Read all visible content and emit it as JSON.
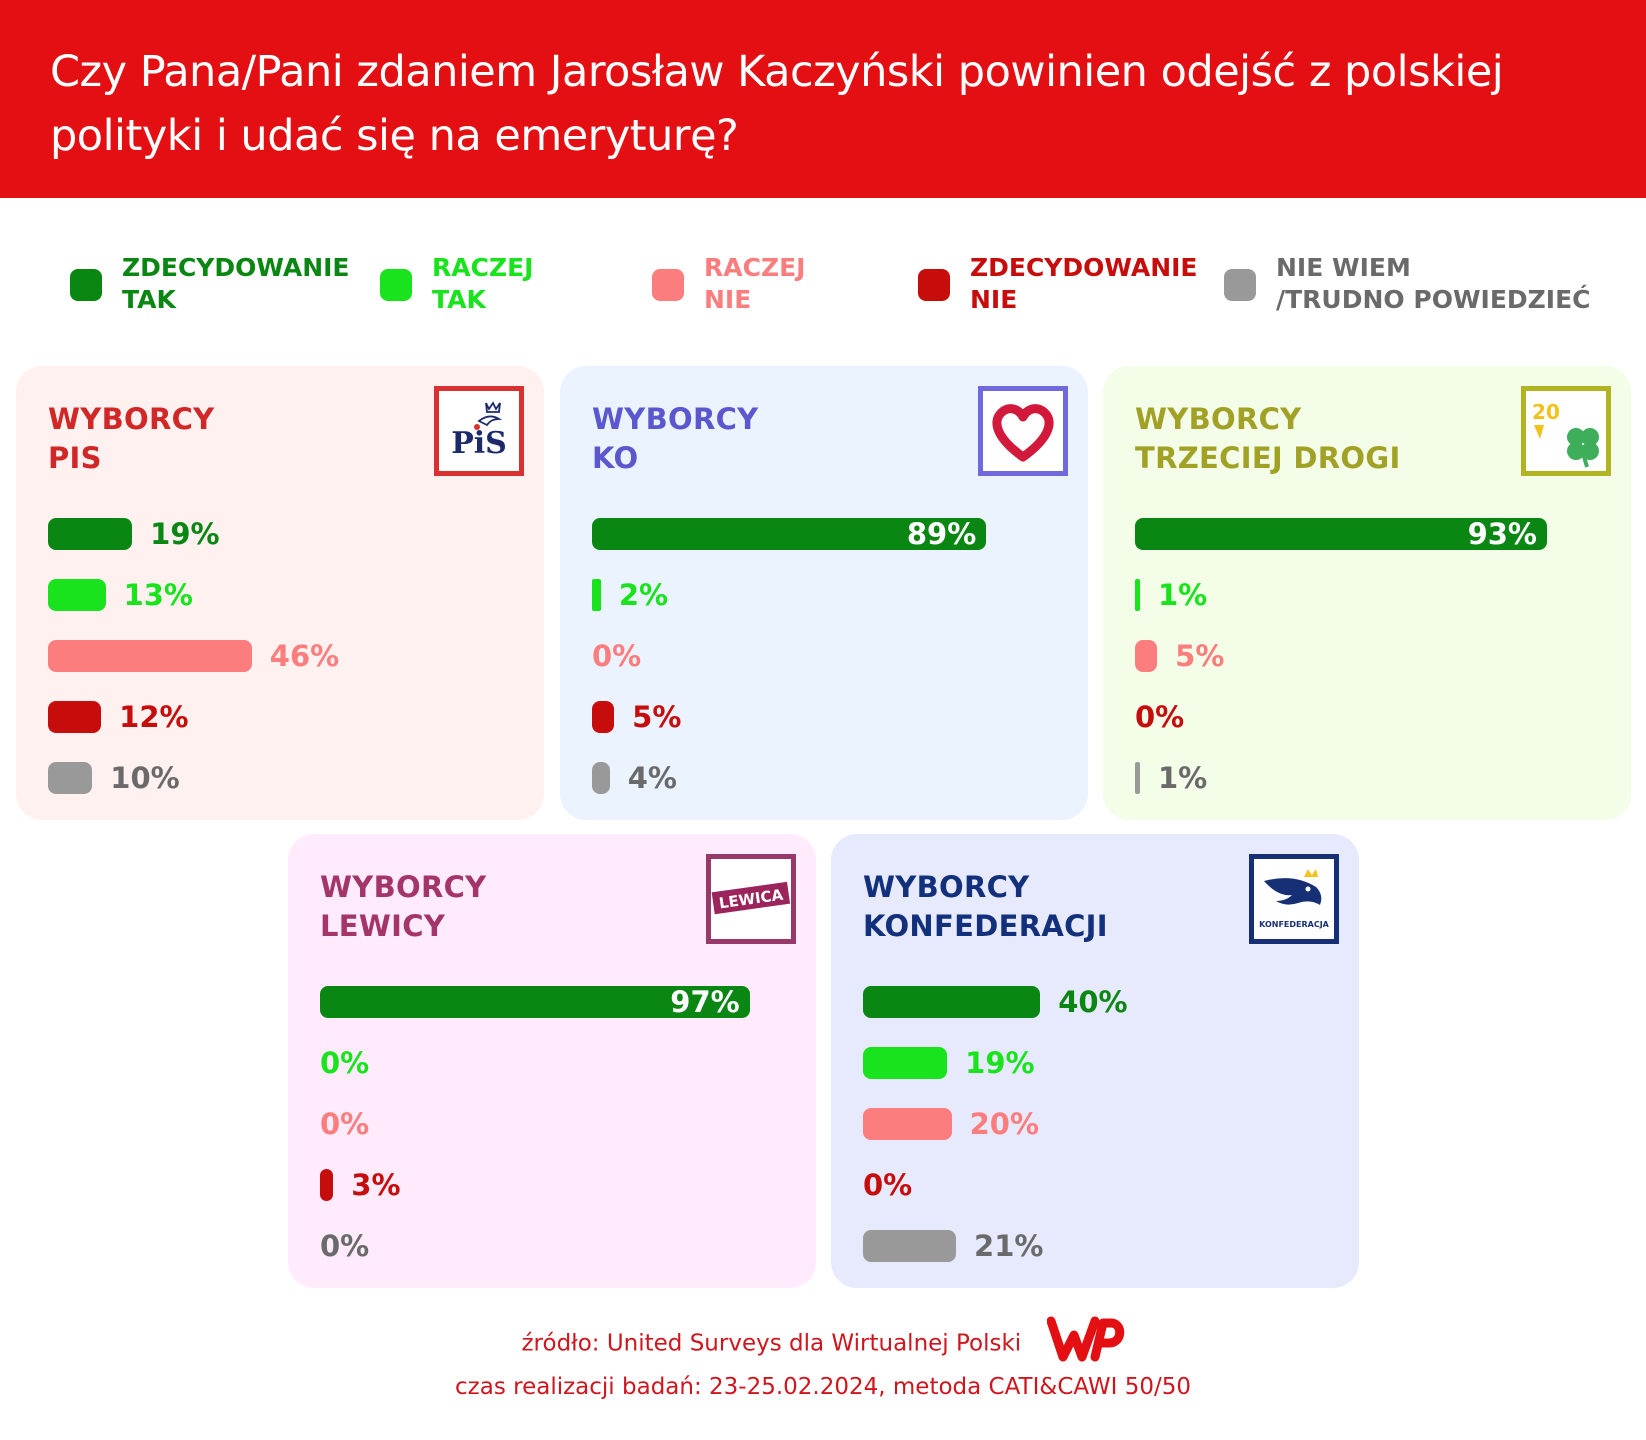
{
  "header": {
    "title": "Czy Pana/Pani zdaniem Jarosław Kaczyński powinien odejść z polskiej polityki i udać się na emeryturę?"
  },
  "colors": {
    "zt": "#0a8612",
    "rt": "#19e31d",
    "rn": "#fc7d7d",
    "zn": "#c70c0c",
    "nw": "#999999",
    "accent_red": "#e30f12"
  },
  "legend": [
    {
      "key": "zt",
      "label": "ZDECYDOWANIE\nTAK"
    },
    {
      "key": "rt",
      "label": "RACZEJ\nTAK"
    },
    {
      "key": "rn",
      "label": "RACZEJ\nNIE"
    },
    {
      "key": "zn",
      "label": "ZDECYDOWANIE\nNIE"
    },
    {
      "key": "nw",
      "label": "NIE WIEM\n/TRUDNO POWIEDZIEĆ"
    }
  ],
  "panels": [
    {
      "id": "pis",
      "title": "WYBORCY\nPIS",
      "logo": "pis-logo",
      "title_color": "#d12727",
      "bg": "#fff1ef",
      "border": "#d93131"
    },
    {
      "id": "ko",
      "title": "WYBORCY\nKO",
      "logo": "ko-heart-logo",
      "title_color": "#5b58cf",
      "bg": "#eaf3ff",
      "border": "#7068dd"
    },
    {
      "id": "td",
      "title": "WYBORCY\nTRZECIEJ DROGI",
      "logo": "trzecia-droga-logo",
      "title_color": "#a1a126",
      "bg": "#f3fde7",
      "border": "#b0b420"
    },
    {
      "id": "lewica",
      "title": "WYBORCY\nLEWICY",
      "logo": "lewica-logo",
      "title_color": "#a3356b",
      "bg": "#ffebfb",
      "border": "#983a69",
      "logo_text": "LEWICA"
    },
    {
      "id": "konf",
      "title": "WYBORCY\nKONFEDERACJI",
      "logo": "konfederacja-logo",
      "title_color": "#12307b",
      "bg": "#e6eafc",
      "border": "#172f75",
      "logo_text": "KONFEDERACJA"
    }
  ],
  "chart_data": {
    "type": "bar",
    "orientation": "horizontal",
    "unit": "%",
    "xlim": [
      0,
      100
    ],
    "categories": [
      "ZDECYDOWANIE TAK",
      "RACZEJ TAK",
      "RACZEJ NIE",
      "ZDECYDOWANIE NIE",
      "NIE WIEM /TRUDNO POWIEDZIEĆ"
    ],
    "series": [
      {
        "name": "WYBORCY PIS",
        "values": [
          19,
          13,
          46,
          12,
          10
        ],
        "labels": [
          "19%",
          "13%",
          "46%",
          "12%",
          "10%"
        ]
      },
      {
        "name": "WYBORCY KO",
        "values": [
          89,
          2,
          0,
          5,
          4
        ],
        "labels": [
          "89%",
          "2%",
          "0%",
          "5%",
          "4%"
        ]
      },
      {
        "name": "WYBORCY TRZECIEJ DROGI",
        "values": [
          93,
          1,
          5,
          0,
          1
        ],
        "labels": [
          "93%",
          "1%",
          "5%",
          "0%",
          "1%"
        ]
      },
      {
        "name": "WYBORCY LEWICY",
        "values": [
          97,
          0,
          0,
          3,
          0
        ],
        "labels": [
          "97%",
          "0%",
          "0%",
          "3%",
          "0%"
        ]
      },
      {
        "name": "WYBORCY KONFEDERACJI",
        "values": [
          40,
          19,
          20,
          0,
          21
        ],
        "labels": [
          "40%",
          "19%",
          "20%",
          "0%",
          "21%"
        ]
      }
    ]
  },
  "footer": {
    "source": "źródło: United Surveys dla Wirtualnej Polski",
    "method": "czas realizacji badań: 23-25.02.2024, metoda CATI&CAWI 50/50",
    "logo": "wp-logo"
  }
}
